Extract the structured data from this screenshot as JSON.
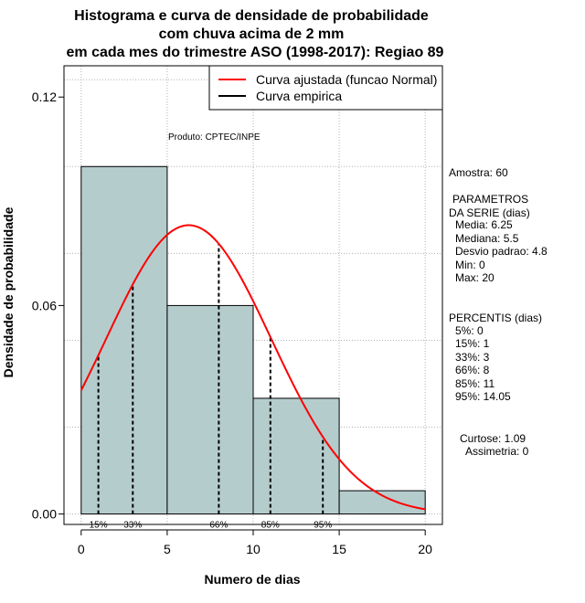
{
  "colors": {
    "bar_fill": "#b5cccd",
    "bar_stroke": "#000000",
    "fitted_curve": "#ff0000",
    "grid": "#b0b0b0",
    "percentile_line": "#000000"
  },
  "chart_data": {
    "type": "bar",
    "title_lines": [
      "Histograma e curva de densidade de probabilidade",
      "com chuva acima de 2 mm",
      "em cada mes do trimestre ASO (1998-2017): Regiao 89"
    ],
    "xlabel": "Numero de dias",
    "ylabel": "Densidade de probabilidade",
    "xlim": [
      -1,
      21
    ],
    "ylim": [
      -0.003,
      0.129
    ],
    "x_ticks": [
      0,
      5,
      10,
      15,
      20
    ],
    "y_ticks": [
      0.0,
      0.06,
      0.12
    ],
    "y_tick_labels": [
      "0.00",
      "0.06",
      "0.12"
    ],
    "grid": true,
    "bins": [
      {
        "start": 0,
        "end": 5,
        "density": 0.1
      },
      {
        "start": 5,
        "end": 10,
        "density": 0.06
      },
      {
        "start": 10,
        "end": 15,
        "density": 0.0333
      },
      {
        "start": 15,
        "end": 20,
        "density": 0.0067
      }
    ],
    "fitted_normal": {
      "mean": 6.25,
      "sd": 4.8,
      "x_range": [
        0,
        20
      ]
    },
    "percentile_lines": [
      {
        "label": "15%",
        "x": 1
      },
      {
        "label": "33%",
        "x": 3
      },
      {
        "label": "66%",
        "x": 8
      },
      {
        "label": "85%",
        "x": 11
      },
      {
        "label": "95%",
        "x": 14.05
      }
    ],
    "legend": {
      "placement": "top-right",
      "entries": [
        {
          "label": "Curva ajustada (funcao Normal)",
          "color": "#ff0000"
        },
        {
          "label": "Curva empirica",
          "color": "#000000"
        }
      ]
    },
    "annotation": "Produto: CPTEC/INPE"
  },
  "side_panel": {
    "amostra": "Amostra: 60",
    "parametros_title_1": "PARAMETROS",
    "parametros_title_2": "DA SERIE (dias)",
    "media": "Media: 6.25",
    "mediana": "Mediana: 5.5",
    "desvio": "Desvio padrao: 4.8",
    "min": "Min: 0",
    "max": "Max: 20",
    "percentis_title": "PERCENTIS (dias)",
    "p5": "5%: 0",
    "p15": "15%: 1",
    "p33": "33%: 3",
    "p66": "66%: 8",
    "p85": "85%: 11",
    "p95": "95%: 14.05",
    "curtose": "Curtose: 1.09",
    "assimetria": "Assimetria: 0"
  }
}
